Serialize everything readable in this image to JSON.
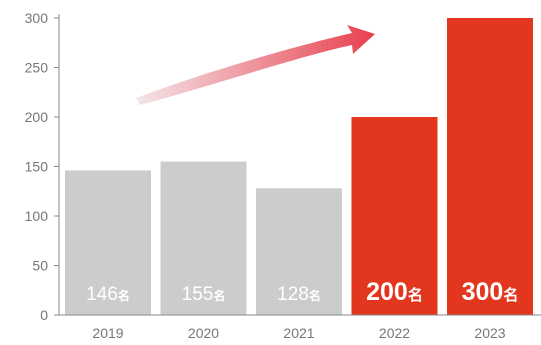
{
  "chart_data": {
    "type": "bar",
    "categories": [
      "2019",
      "2020",
      "2021",
      "2022",
      "2023"
    ],
    "values": [
      146,
      155,
      128,
      200,
      300
    ],
    "data_labels": [
      {
        "number": "146",
        "unit": "名"
      },
      {
        "number": "155",
        "unit": "名"
      },
      {
        "number": "128",
        "unit": "名"
      },
      {
        "number": "200",
        "unit": "名"
      },
      {
        "number": "300",
        "unit": "名"
      }
    ],
    "highlighted": [
      false,
      false,
      false,
      true,
      true
    ],
    "ylim": [
      0,
      300
    ],
    "yticks": [
      "0",
      "50",
      "100",
      "150",
      "200",
      "250",
      "300"
    ],
    "grid": false,
    "title": "",
    "xlabel": "",
    "ylabel": "",
    "colors": {
      "normal_bar": "#cccccc",
      "highlight_bar": "#e2361e",
      "axis": "#8a8a8a",
      "tick_text": "#777777",
      "bar_label_text": "#ffffff",
      "arrow_start": "#f3e6e8",
      "arrow_end": "#e8404e"
    },
    "annotations": [
      {
        "type": "arrow",
        "direction": "up-right",
        "icon": "trend-arrow-icon"
      }
    ]
  }
}
